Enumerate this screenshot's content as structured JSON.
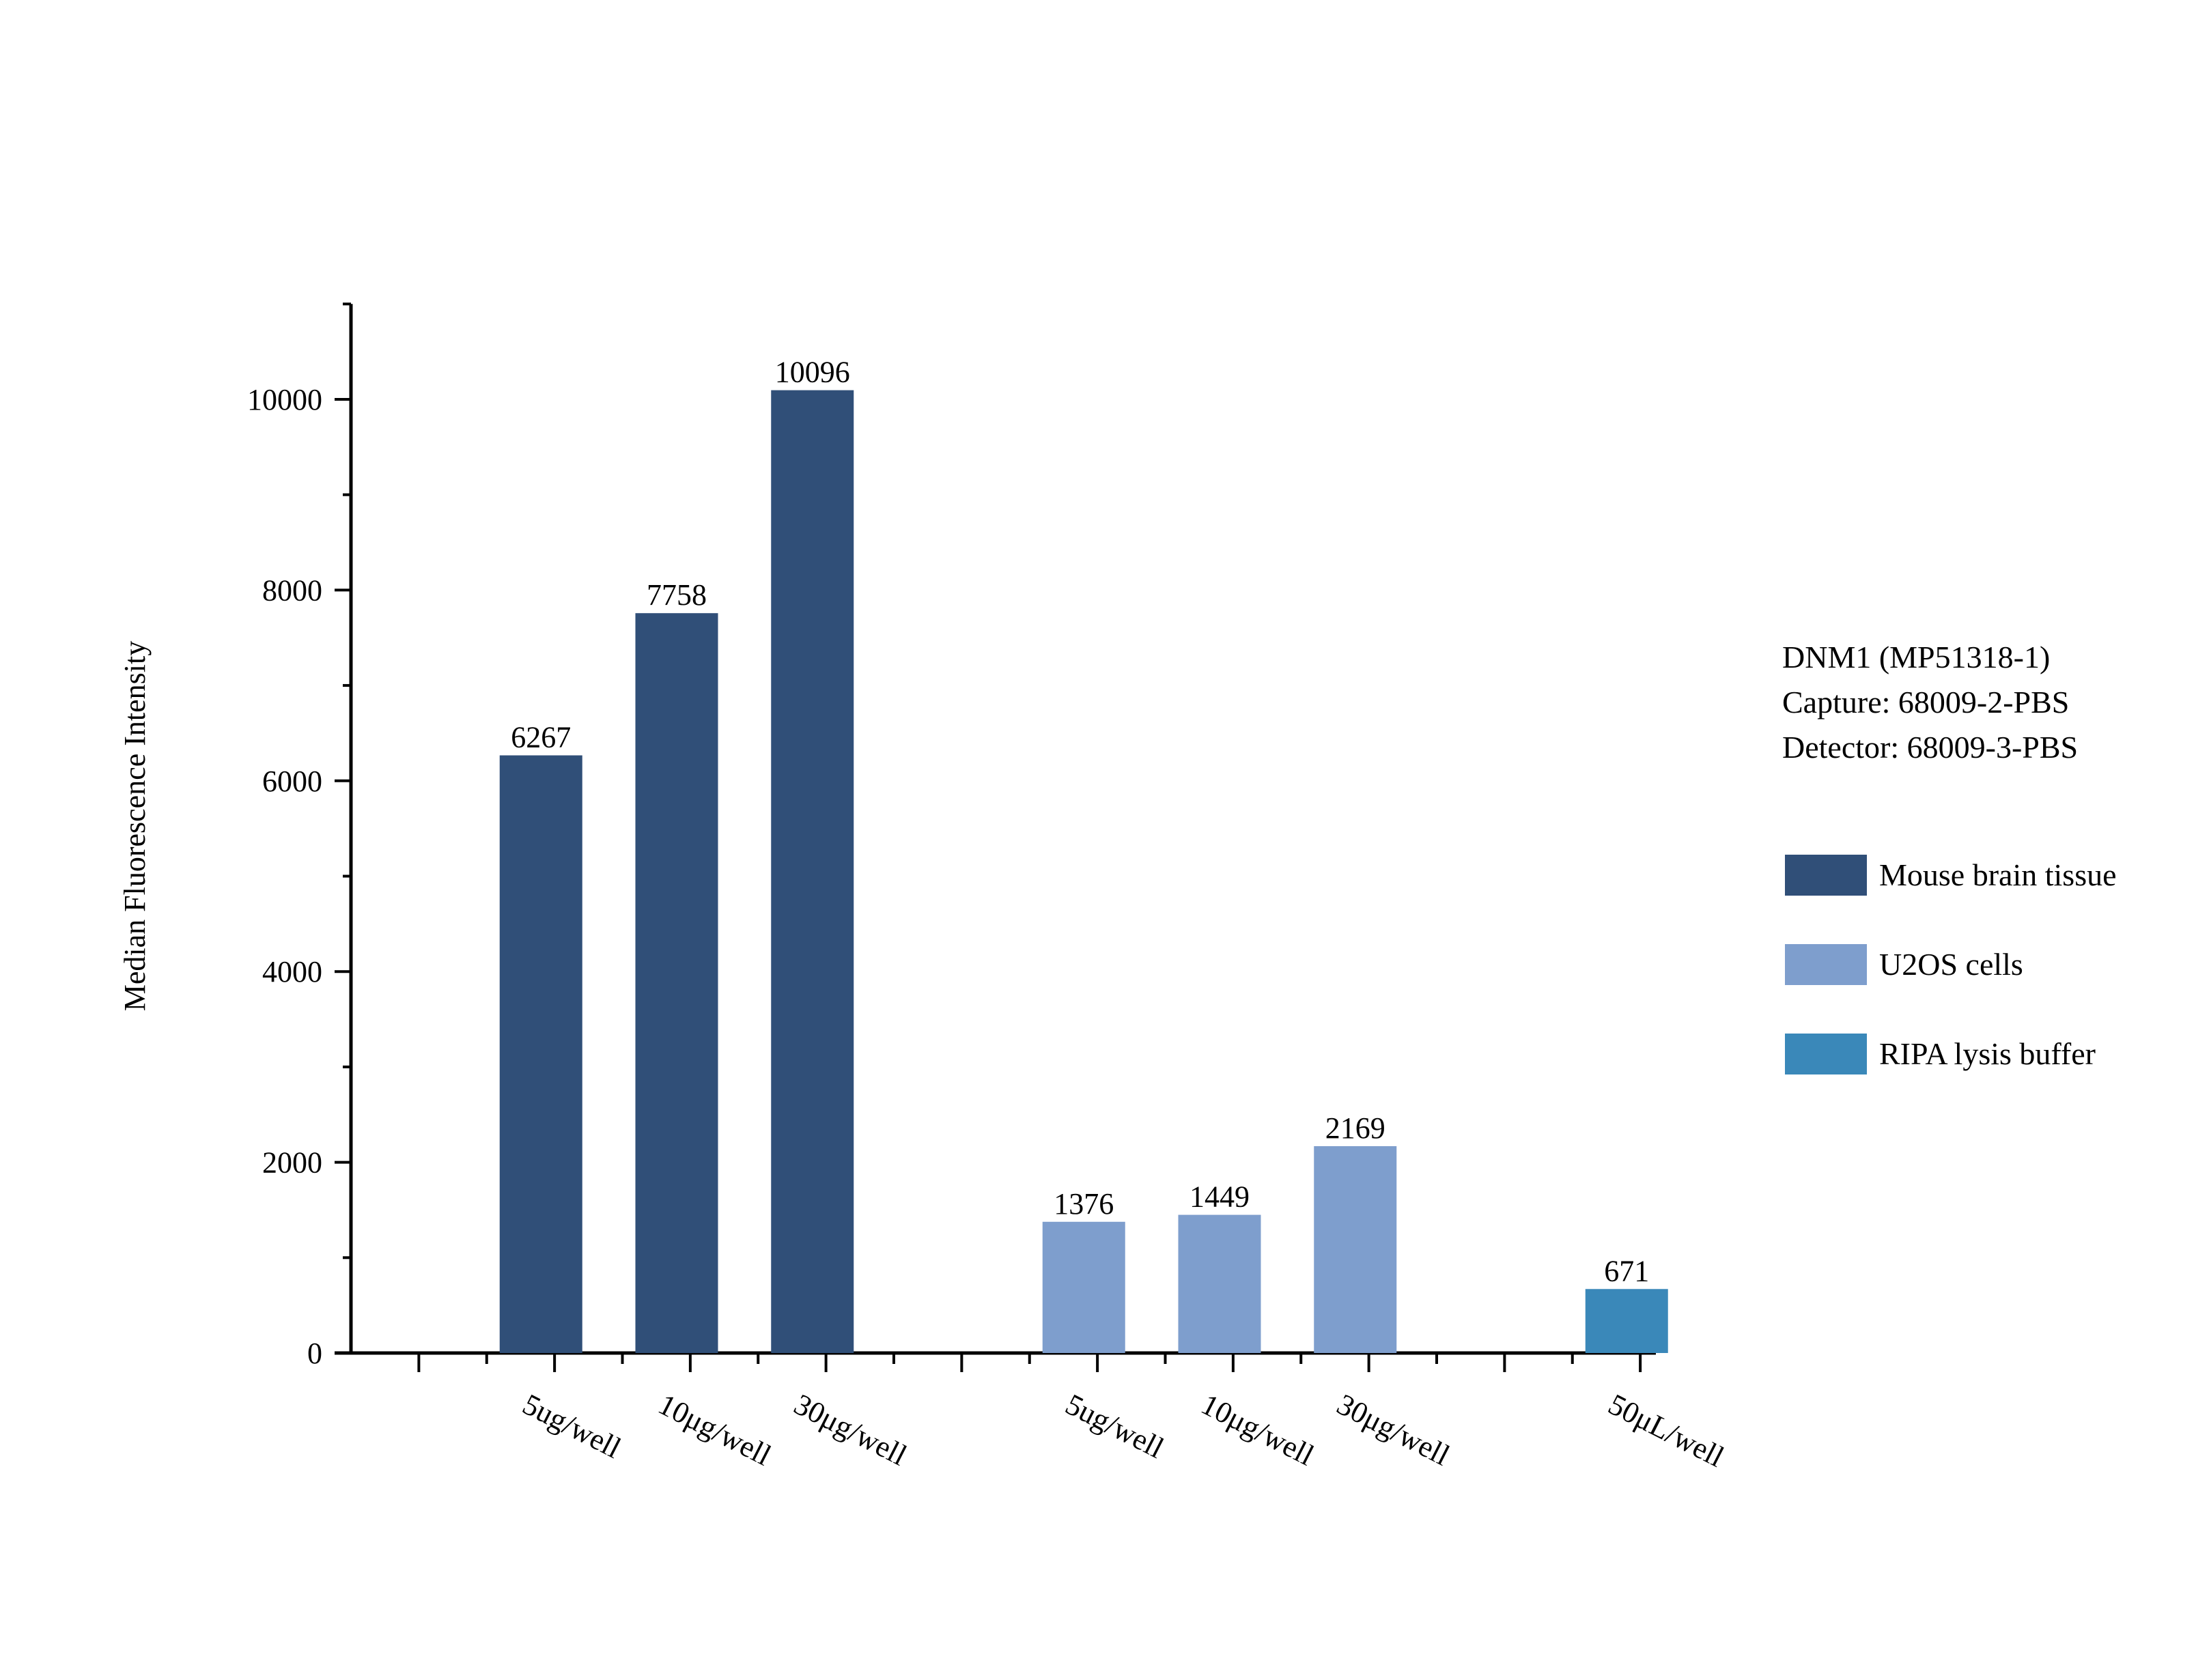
{
  "chart_data": {
    "type": "bar",
    "ylabel": "Median Fluorescence Intensity",
    "xlabel": "",
    "ylim": [
      0,
      11000
    ],
    "yticks": [
      0,
      2000,
      4000,
      6000,
      8000,
      10000
    ],
    "grid": false,
    "legend_position": "right",
    "info": [
      "DNM1 (MP51318-1)",
      "Capture: 68009-2-PBS",
      "Detector: 68009-3-PBS"
    ],
    "series": [
      {
        "name": "Mouse brain tissue",
        "color": "#304f78",
        "categories": [
          "5ug/well",
          "10μg/well",
          "30μg/well"
        ],
        "values": [
          6267,
          7758,
          10096
        ]
      },
      {
        "name": "U2OS cells",
        "color": "#7e9ecd",
        "categories": [
          "5ug/well",
          "10μg/well",
          "30μg/well"
        ],
        "values": [
          1376,
          1449,
          2169
        ]
      },
      {
        "name": "RIPA lysis buffer",
        "color": "#3a88b9",
        "categories": [
          "50μL/well"
        ],
        "values": [
          671
        ]
      }
    ]
  }
}
